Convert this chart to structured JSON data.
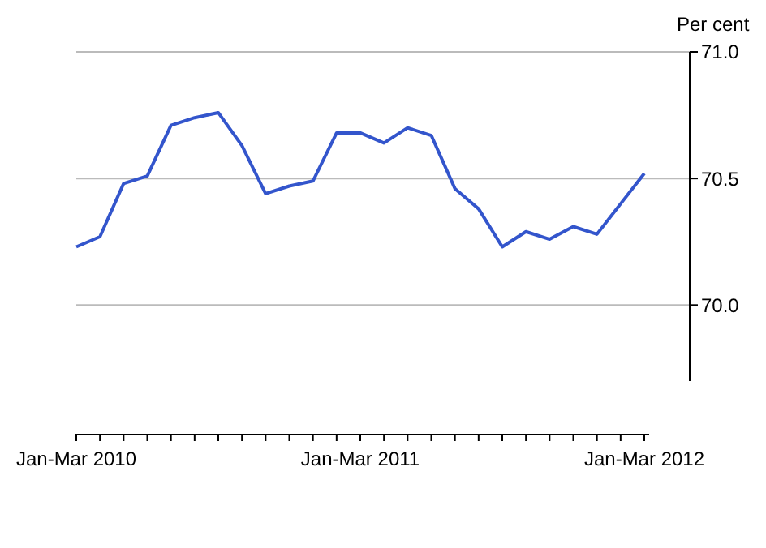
{
  "chart_data": {
    "type": "line",
    "ylabel": "Per cent",
    "categories": [
      "Jan-Mar 2010",
      null,
      null,
      null,
      null,
      null,
      null,
      null,
      null,
      null,
      null,
      null,
      "Jan-Mar 2011",
      null,
      null,
      null,
      null,
      null,
      null,
      null,
      null,
      null,
      null,
      null,
      "Jan-Mar 2012"
    ],
    "series": [
      {
        "color": "#3355cc",
        "values": [
          70.23,
          70.27,
          70.48,
          70.51,
          70.71,
          70.74,
          70.76,
          70.63,
          70.44,
          70.47,
          70.49,
          70.68,
          70.68,
          70.64,
          70.7,
          70.67,
          70.46,
          70.38,
          70.23,
          70.29,
          70.26,
          70.31,
          70.28,
          70.4,
          70.52
        ]
      }
    ],
    "ylim": [
      69.7,
      71.0
    ],
    "yticks": [
      {
        "value": 70,
        "label": "70.0"
      },
      {
        "value": 70.5,
        "label": "70.5"
      },
      {
        "value": 71,
        "label": "71.0"
      }
    ],
    "grid": "y",
    "marker": "none",
    "line_style": "solid"
  }
}
